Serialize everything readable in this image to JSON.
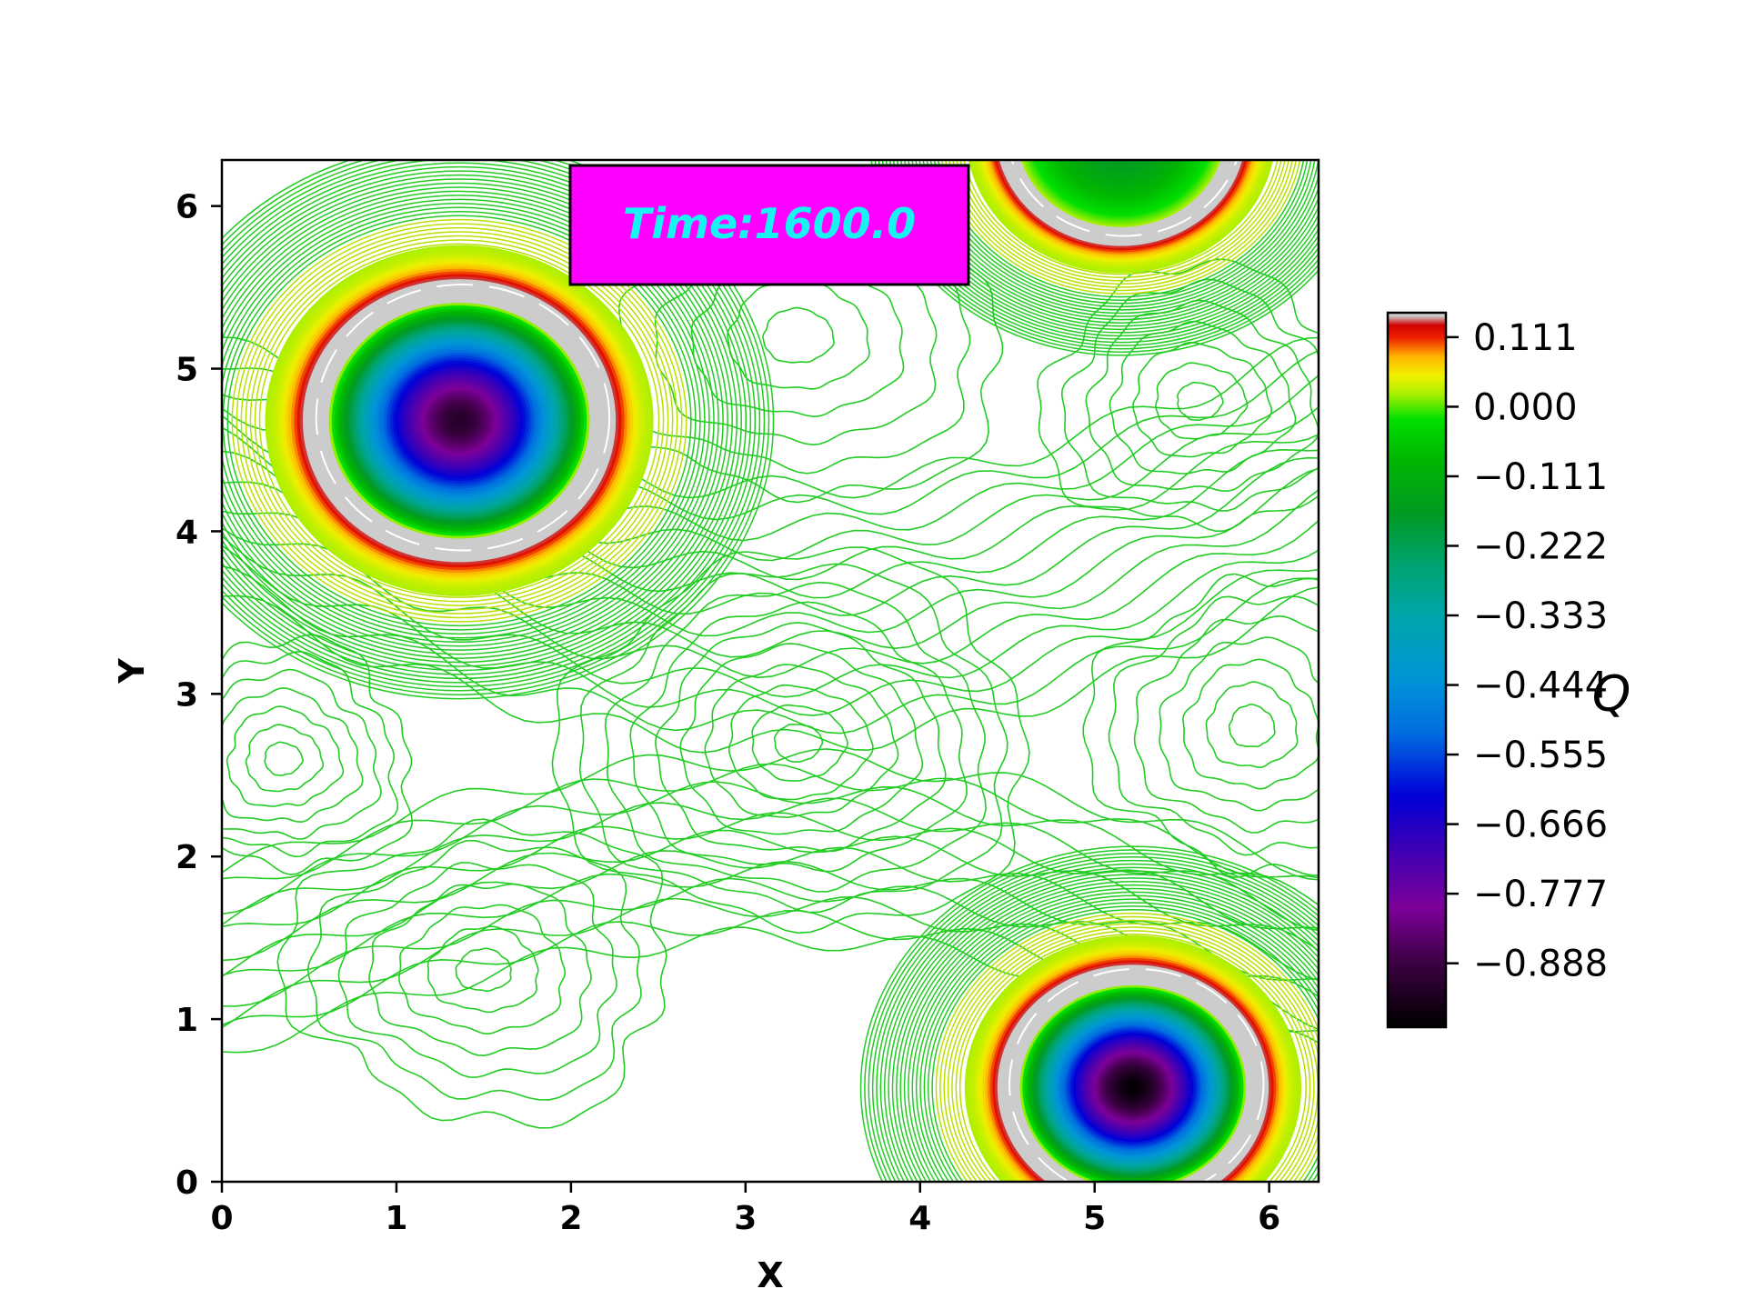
{
  "chart_data": {
    "type": "contour",
    "title": "",
    "annotation": "Time:1600.0",
    "xlabel": "X",
    "ylabel": "Y",
    "xlim": [
      0,
      6.2832
    ],
    "ylim": [
      0,
      6.2832
    ],
    "x_ticks": [
      "0",
      "1",
      "2",
      "3",
      "4",
      "5",
      "6"
    ],
    "y_ticks": [
      "0",
      "1",
      "2",
      "3",
      "4",
      "5",
      "6"
    ],
    "colorbar": {
      "label": "Q",
      "range": [
        -0.99,
        0.15
      ],
      "ticks": [
        0.111,
        0.0,
        -0.111,
        -0.222,
        -0.333,
        -0.444,
        -0.555,
        -0.666,
        -0.777,
        -0.888
      ],
      "tick_labels": [
        "0.111",
        "0.000",
        "−0.111",
        "−0.222",
        "−0.333",
        "−0.444",
        "−0.555",
        "−0.666",
        "−0.777",
        "−0.888"
      ],
      "colormap": "nipy_spectral-like"
    },
    "vortices": [
      {
        "center": [
          1.36,
          4.68
        ],
        "min_value": -0.93,
        "core_radius": 0.75
      },
      {
        "center": [
          5.22,
          0.58
        ],
        "min_value": -0.99,
        "core_radius": 0.65
      },
      {
        "center": [
          5.15,
          6.45
        ],
        "min_value": -0.2,
        "core_radius": 0.6
      }
    ],
    "background_contours": {
      "color": "#22cc22",
      "note": "thin green isolines of small positive Q"
    },
    "colors": {
      "annotation_box_fill": "#ff00ff",
      "annotation_text": "#17f3f3",
      "background_contour": "#22cc22"
    }
  }
}
